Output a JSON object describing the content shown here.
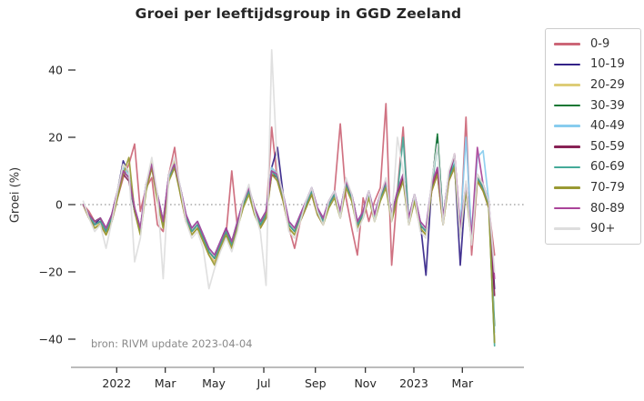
{
  "chart_data": {
    "type": "line",
    "title": "Groei per leeftijdsgroup in GGD Zeeland",
    "xlabel": "",
    "ylabel": "Groei (%)",
    "annotation": "bron: RIVM update 2023-04-04",
    "x_unit": "week",
    "x_start_date": "2021-11-21",
    "x_end_date": "2023-04-09",
    "x_points": 73,
    "x_tick_labels": [
      "2022",
      "Mar",
      "May",
      "Jul",
      "Sep",
      "Nov",
      "2023",
      "Mar"
    ],
    "x_tick_week_positions": [
      5.86,
      14.36,
      22.85,
      31.61,
      40.64,
      49.39,
      57.88,
      66.37
    ],
    "y_ticks": [
      40,
      20,
      0,
      -20,
      -40
    ],
    "ylim": [
      -46,
      49
    ],
    "zero_line": true,
    "grid": false,
    "legend_position": "outside-upper-right",
    "axis_color": "#a6a6a6",
    "tick_color": "#333333",
    "tick_label_color": "#262626",
    "zero_line_color": "#9a9a9a",
    "series": [
      {
        "name": "0-9",
        "color": "#CC6677",
        "values": [
          0,
          -2,
          -5,
          -6,
          -9,
          -5,
          2,
          8,
          12,
          18,
          -2,
          5,
          8,
          -6,
          -8,
          9,
          17,
          3,
          -5,
          -9,
          -7,
          -11,
          -15,
          -17,
          -13,
          -9,
          10,
          -7,
          1,
          5,
          -1,
          -7,
          -4,
          23,
          7,
          1,
          -7,
          -13,
          -5,
          -1,
          3,
          -3,
          -6,
          1,
          4,
          24,
          2,
          -7,
          -15,
          2,
          -5,
          1,
          5,
          30,
          -18,
          4,
          23,
          -6,
          3,
          -7,
          -9,
          4,
          9,
          -6,
          7,
          11,
          -9,
          26,
          -15,
          7,
          4,
          -1,
          -15
        ]
      },
      {
        "name": "10-19",
        "color": "#332288",
        "values": [
          0,
          -3,
          -6,
          -4,
          -7,
          -3,
          4,
          13,
          9,
          -1,
          -7,
          6,
          11,
          3,
          -5,
          9,
          13,
          5,
          -3,
          -7,
          -5,
          -9,
          -13,
          -15,
          -11,
          -7,
          -11,
          -5,
          1,
          5,
          -1,
          -5,
          -2,
          11,
          17,
          3,
          -5,
          -7,
          -3,
          1,
          5,
          -1,
          -4,
          1,
          4,
          -2,
          7,
          3,
          -5,
          -2,
          4,
          -3,
          3,
          7,
          -3,
          4,
          9,
          -4,
          3,
          -5,
          -21,
          6,
          20,
          -4,
          9,
          13,
          -18,
          6,
          -9,
          9,
          6,
          1,
          -25
        ]
      },
      {
        "name": "20-29",
        "color": "#DDCC77",
        "values": [
          0,
          -4,
          -7,
          -5,
          -9,
          -4,
          4,
          12,
          9,
          -2,
          -9,
          6,
          13,
          2,
          -7,
          9,
          13,
          4,
          -4,
          -9,
          -7,
          -11,
          -15,
          -17,
          -13,
          -9,
          -13,
          -7,
          0,
          4,
          -2,
          -7,
          -3,
          11,
          9,
          2,
          -7,
          -9,
          -4,
          0,
          4,
          -2,
          -6,
          0,
          3,
          -4,
          7,
          2,
          -7,
          -3,
          3,
          -5,
          2,
          7,
          -5,
          3,
          9,
          -6,
          2,
          -7,
          -9,
          6,
          11,
          -6,
          9,
          13,
          -9,
          6,
          -11,
          9,
          6,
          -1,
          -41
        ]
      },
      {
        "name": "30-39",
        "color": "#117733",
        "values": [
          0,
          -3,
          -5,
          -4,
          -8,
          -3,
          3,
          10,
          8,
          -2,
          -8,
          5,
          12,
          2,
          -6,
          8,
          12,
          4,
          -4,
          -8,
          -6,
          -10,
          -14,
          -16,
          -12,
          -8,
          -12,
          -6,
          0,
          4,
          -2,
          -6,
          -3,
          10,
          8,
          2,
          -6,
          -8,
          -4,
          0,
          4,
          -2,
          -5,
          0,
          3,
          -3,
          6,
          2,
          -6,
          -3,
          3,
          -4,
          2,
          6,
          -4,
          3,
          8,
          -5,
          2,
          -6,
          -8,
          5,
          21,
          -5,
          8,
          12,
          -8,
          5,
          -10,
          8,
          5,
          0,
          -36
        ]
      },
      {
        "name": "40-49",
        "color": "#88CCEE",
        "values": [
          0,
          -3,
          -6,
          -5,
          -7,
          -4,
          4,
          11,
          9,
          -1,
          -7,
          6,
          12,
          3,
          -5,
          9,
          12,
          5,
          -3,
          -7,
          -5,
          -9,
          -13,
          -15,
          -11,
          -8,
          -11,
          -5,
          1,
          5,
          -1,
          -5,
          -2,
          11,
          9,
          3,
          -5,
          -7,
          -3,
          1,
          5,
          -1,
          -4,
          1,
          4,
          -2,
          7,
          3,
          -5,
          -2,
          4,
          -3,
          3,
          7,
          -3,
          4,
          9,
          -4,
          3,
          -5,
          -7,
          6,
          11,
          -4,
          9,
          13,
          -7,
          20,
          -9,
          14,
          16,
          1,
          -38
        ]
      },
      {
        "name": "50-59",
        "color": "#882255",
        "values": [
          0,
          -4,
          -6,
          -5,
          -8,
          -4,
          3,
          9,
          7,
          -2,
          -8,
          5,
          11,
          2,
          -6,
          8,
          11,
          4,
          -4,
          -8,
          -6,
          -10,
          -14,
          -16,
          -12,
          -8,
          -12,
          -6,
          0,
          4,
          -2,
          -6,
          -3,
          9,
          8,
          2,
          -6,
          -8,
          -4,
          0,
          4,
          -2,
          -5,
          0,
          3,
          -3,
          6,
          2,
          -6,
          -3,
          3,
          -4,
          2,
          6,
          -4,
          3,
          8,
          -5,
          2,
          -6,
          -8,
          5,
          10,
          -5,
          8,
          15,
          -8,
          5,
          -10,
          8,
          5,
          0,
          -27
        ]
      },
      {
        "name": "60-69",
        "color": "#44AA99",
        "values": [
          0,
          -3,
          -6,
          -5,
          -8,
          -4,
          3,
          10,
          8,
          -2,
          -8,
          5,
          12,
          2,
          -6,
          8,
          12,
          4,
          -4,
          -8,
          -6,
          -10,
          -14,
          -16,
          -12,
          -8,
          -12,
          -6,
          0,
          4,
          -2,
          -6,
          -3,
          10,
          8,
          2,
          -6,
          -8,
          -4,
          0,
          4,
          -2,
          -5,
          0,
          3,
          -3,
          6,
          2,
          -6,
          -3,
          3,
          -4,
          2,
          6,
          -4,
          3,
          20,
          -5,
          2,
          -6,
          -8,
          5,
          18,
          -5,
          8,
          12,
          -8,
          5,
          -10,
          8,
          5,
          0,
          -42
        ]
      },
      {
        "name": "70-79",
        "color": "#999933",
        "values": [
          0,
          -4,
          -7,
          -6,
          -9,
          -5,
          2,
          9,
          14,
          -2,
          -9,
          4,
          11,
          1,
          -7,
          7,
          11,
          3,
          -5,
          -9,
          -7,
          -11,
          -15,
          -18,
          -13,
          -9,
          -13,
          -7,
          -1,
          3,
          -3,
          -7,
          -4,
          9,
          7,
          1,
          -7,
          -9,
          -5,
          -1,
          3,
          -3,
          -6,
          -1,
          2,
          -4,
          5,
          1,
          -7,
          -4,
          2,
          -5,
          1,
          5,
          -5,
          2,
          7,
          -6,
          1,
          -7,
          -9,
          4,
          9,
          -6,
          7,
          11,
          -9,
          4,
          -11,
          7,
          4,
          -1,
          -41
        ]
      },
      {
        "name": "80-89",
        "color": "#AA4499",
        "values": [
          0,
          -3,
          -5,
          -4,
          -7,
          -3,
          4,
          10,
          8,
          -1,
          -7,
          6,
          12,
          3,
          -5,
          9,
          12,
          5,
          -3,
          -7,
          -5,
          -9,
          -13,
          -15,
          -11,
          -7,
          -11,
          -5,
          1,
          5,
          -1,
          -5,
          -2,
          10,
          9,
          3,
          -5,
          -7,
          -3,
          1,
          5,
          -1,
          -4,
          1,
          4,
          -2,
          7,
          3,
          -5,
          -2,
          4,
          -3,
          3,
          7,
          -3,
          4,
          9,
          -4,
          3,
          -5,
          -7,
          6,
          11,
          -4,
          9,
          15,
          -7,
          6,
          -9,
          17,
          6,
          1,
          -22
        ]
      },
      {
        "name": "90+",
        "color": "#DDDDDD",
        "values": [
          1,
          -4,
          -8,
          -6,
          -13,
          -5,
          4,
          12,
          10,
          -17,
          -10,
          6,
          14,
          3,
          -22,
          9,
          14,
          5,
          -5,
          -10,
          -8,
          -13,
          -25,
          -19,
          -14,
          -10,
          -14,
          -8,
          1,
          6,
          -2,
          -8,
          -24,
          46,
          10,
          3,
          -8,
          -10,
          -5,
          1,
          5,
          -2,
          -6,
          1,
          4,
          -4,
          8,
          3,
          -8,
          -4,
          4,
          -5,
          3,
          8,
          -5,
          20,
          10,
          -6,
          3,
          -8,
          -10,
          7,
          18,
          -6,
          10,
          15,
          -10,
          7,
          -12,
          9,
          6,
          1,
          -20
        ]
      }
    ]
  }
}
